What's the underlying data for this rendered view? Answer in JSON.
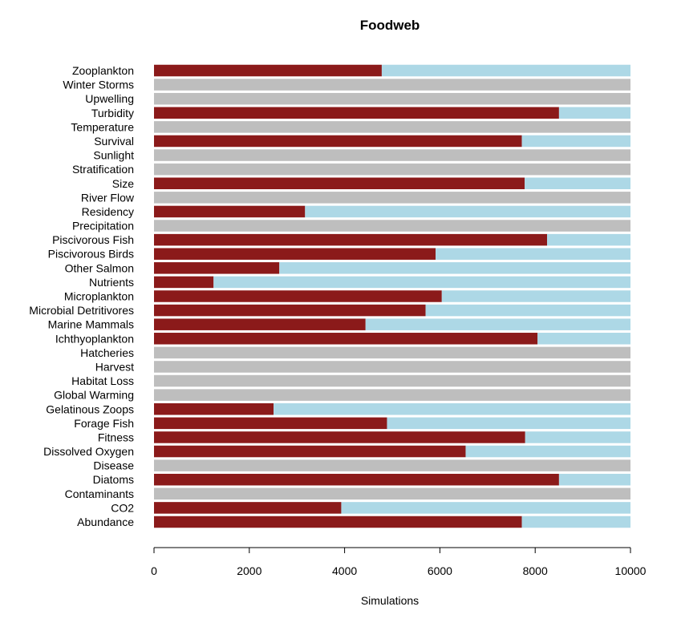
{
  "chart_data": {
    "type": "bar",
    "orientation": "horizontal",
    "stacked": true,
    "title": "Foodweb",
    "xlabel": "Simulations",
    "ylabel": "",
    "xlim": [
      0,
      10000
    ],
    "xticks": [
      0,
      2000,
      4000,
      6000,
      8000,
      10000
    ],
    "grid": false,
    "colors": {
      "primary": "#8b1a1a",
      "remainder": "#add8e6",
      "inactive": "#bebebe"
    },
    "categories": [
      "Zooplankton",
      "Winter Storms",
      "Upwelling",
      "Turbidity",
      "Temperature",
      "Survival",
      "Sunlight",
      "Stratification",
      "Size",
      "River Flow",
      "Residency",
      "Precipitation",
      "Piscivorous Fish",
      "Piscivorous Birds",
      "Other Salmon",
      "Nutrients",
      "Microplankton",
      "Microbial Detritivores",
      "Marine Mammals",
      "Ichthyoplankton",
      "Hatcheries",
      "Harvest",
      "Habitat Loss",
      "Global Warming",
      "Gelatinous Zoops",
      "Forage Fish",
      "Fitness",
      "Dissolved Oxygen",
      "Disease",
      "Diatoms",
      "Contaminants",
      "CO2",
      "Abundance"
    ],
    "series": [
      {
        "color": "#8b1a1a",
        "values": [
          4780,
          0,
          0,
          8500,
          0,
          7720,
          0,
          0,
          7780,
          0,
          3170,
          0,
          8250,
          5910,
          2630,
          1250,
          6040,
          5700,
          4440,
          8050,
          0,
          0,
          0,
          0,
          2510,
          4890,
          7790,
          6540,
          0,
          8500,
          0,
          3930,
          7720
        ]
      },
      {
        "color": "#add8e6",
        "values": [
          5220,
          0,
          0,
          1500,
          0,
          2280,
          0,
          0,
          2220,
          0,
          6830,
          0,
          1750,
          4090,
          7370,
          8750,
          3960,
          4300,
          5560,
          1950,
          0,
          0,
          0,
          0,
          7490,
          5110,
          2210,
          3460,
          0,
          1500,
          0,
          6070,
          2280
        ]
      },
      {
        "color": "#bebebe",
        "values": [
          0,
          10000,
          10000,
          0,
          10000,
          0,
          10000,
          10000,
          0,
          10000,
          0,
          10000,
          0,
          0,
          0,
          0,
          0,
          0,
          0,
          0,
          10000,
          10000,
          10000,
          10000,
          0,
          0,
          0,
          0,
          10000,
          0,
          10000,
          0,
          0
        ]
      }
    ]
  }
}
